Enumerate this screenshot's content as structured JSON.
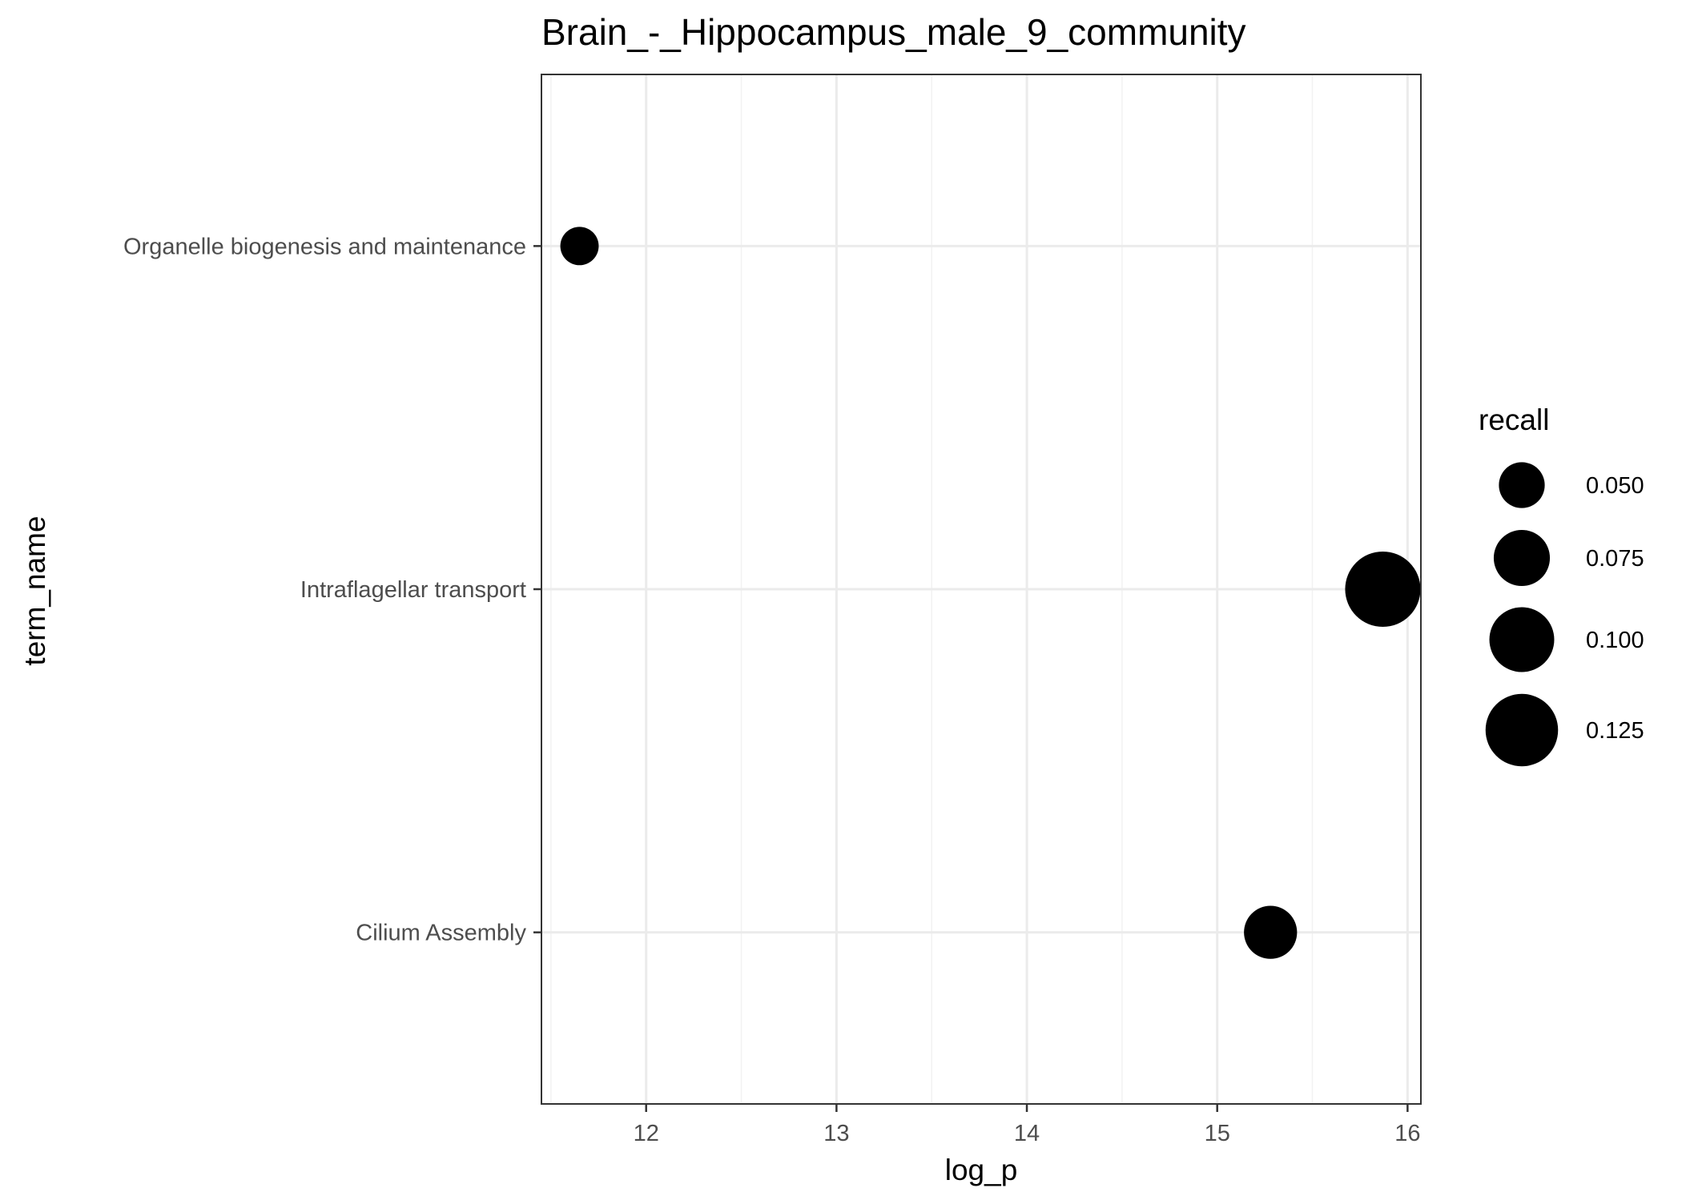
{
  "chart_data": {
    "type": "scatter",
    "title": "Brain_-_Hippocampus_male_9_community",
    "xlabel": "log_p",
    "ylabel": "term_name",
    "xlim": [
      11.45,
      16.07
    ],
    "x_ticks": [
      12,
      13,
      14,
      15,
      16
    ],
    "categories": [
      "Organelle biogenesis and maintenance",
      "Intraflagellar transport",
      "Cilium Assembly"
    ],
    "points": [
      {
        "term": "Organelle biogenesis and maintenance",
        "log_p": 11.65,
        "recall": 0.035
      },
      {
        "term": "Intraflagellar transport",
        "log_p": 15.87,
        "recall": 0.135
      },
      {
        "term": "Cilium Assembly",
        "log_p": 15.28,
        "recall": 0.067
      }
    ],
    "size_legend": {
      "title": "recall",
      "values": [
        0.05,
        0.075,
        0.1,
        0.125
      ],
      "labels": [
        "0.050",
        "0.075",
        "0.100",
        "0.125"
      ]
    },
    "grid": true,
    "legend_position": "right",
    "colors": {
      "point": "#000000",
      "grid_major": "#ebebeb",
      "grid_minor": "#f2f2f2",
      "panel_border": "#333333"
    }
  }
}
